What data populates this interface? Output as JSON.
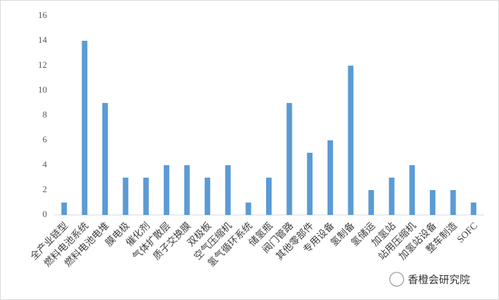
{
  "chart_data": {
    "type": "bar",
    "categories": [
      "全产业链型",
      "燃料电池系统",
      "燃料电池电堆",
      "膜电极",
      "催化剂",
      "气体扩散层",
      "质子交换膜",
      "双极板",
      "空气压缩机",
      "氢气循环系统",
      "储氢瓶",
      "阀门管路",
      "其他零部件",
      "专用设备",
      "氢制备",
      "氢储运",
      "加氢站",
      "站用压缩机",
      "加氢站设备",
      "整车制造",
      "SOFC"
    ],
    "values": [
      1,
      14,
      9,
      3,
      3,
      4,
      4,
      3,
      4,
      1,
      3,
      9,
      5,
      6,
      12,
      2,
      3,
      4,
      2,
      2,
      1
    ],
    "color": "#5b9bd5",
    "ylim": [
      0,
      16
    ],
    "yticks": [
      0,
      2,
      4,
      6,
      8,
      10,
      12,
      14,
      16
    ],
    "grid": false,
    "annotation": "香橙会研究院"
  }
}
